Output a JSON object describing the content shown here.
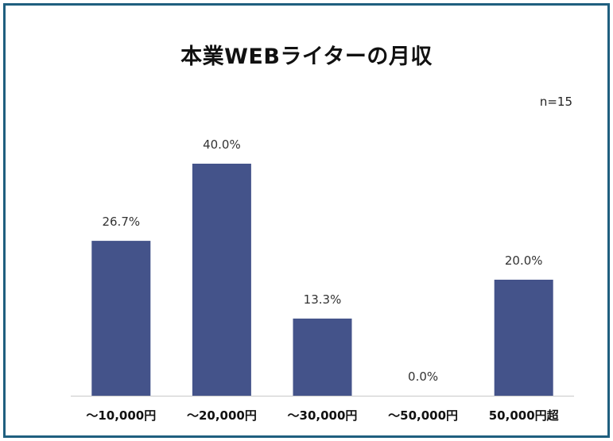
{
  "chart_data": {
    "type": "bar",
    "title": "本業WEBライターの月収",
    "note": "n=15",
    "categories": [
      "～10,000円",
      "～20,000円",
      "～30,000円",
      "～50,000円",
      "50,000円超"
    ],
    "values": [
      26.7,
      40.0,
      13.3,
      0.0,
      20.0
    ],
    "data_labels": [
      "26.7%",
      "40.0%",
      "13.3%",
      "0.0%",
      "20.0%"
    ],
    "ylim": [
      0,
      40
    ],
    "grid": false,
    "legend": "none",
    "bar_color": "#44538a"
  }
}
